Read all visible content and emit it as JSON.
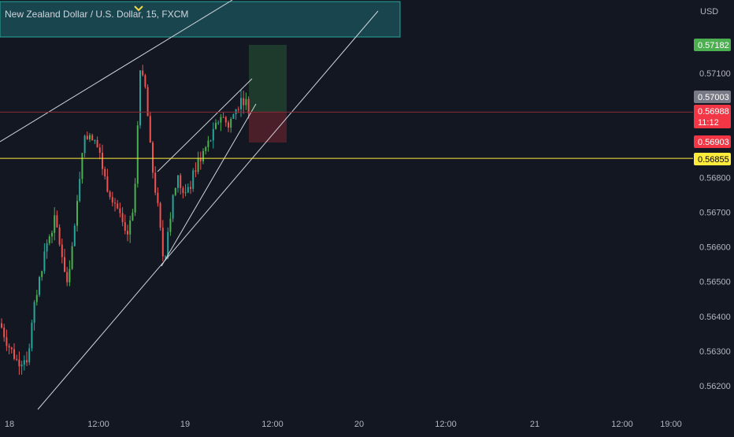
{
  "chart_data": {
    "type": "candlestick",
    "title": "New Zealand Dollar / U.S. Dollar, 15, FXCM",
    "currency": "USD",
    "y_axis": {
      "ticks": [
        "0.56200",
        "0.56300",
        "0.56400",
        "0.56500",
        "0.56600",
        "0.56700",
        "0.56800",
        "0.57100"
      ],
      "range": [
        0.5615,
        0.5725
      ]
    },
    "x_axis": {
      "ticks": [
        "18",
        "12:00",
        "19",
        "12:00",
        "20",
        "12:00",
        "21",
        "12:00",
        "19:00"
      ]
    },
    "price_labels": [
      {
        "value": "0.57182",
        "color": "#4caf50",
        "text_color": "#ffffff"
      },
      {
        "value": "0.57003",
        "color": "#787b86",
        "text_color": "#ffffff"
      },
      {
        "value": "0.56988",
        "extra": "11:12",
        "color": "#f23645",
        "text_color": "#ffffff"
      },
      {
        "value": "0.56903",
        "color": "#f23645",
        "text_color": "#ffffff"
      },
      {
        "value": "0.56855",
        "color": "#ffeb3b",
        "text_color": "#000000"
      }
    ],
    "horizontal_lines": [
      {
        "price": 0.56855,
        "color": "#ffeb3b"
      },
      {
        "price": 0.56988,
        "color": "#8a2b35"
      }
    ],
    "candles_summary": {
      "first_close": 0.5632,
      "last_close": 0.56988,
      "low": 0.5623,
      "high": 0.572
    },
    "colors": {
      "up": "#26a69a",
      "up_alt": "#4caf50",
      "down": "#ef5350",
      "trendline": "#d1d4dc",
      "zone": "#1b4f56",
      "zone_border": "#26a69a",
      "target_box": "#1e3a2c",
      "stop_box": "#4a1f2a"
    }
  }
}
